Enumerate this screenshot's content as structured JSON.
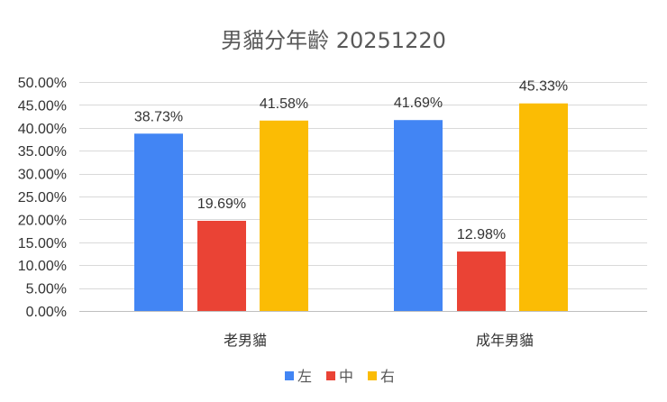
{
  "chart_data": {
    "type": "bar",
    "title": "男貓分年齡 20251220",
    "categories": [
      "老男貓",
      "成年男貓"
    ],
    "series": [
      {
        "name": "左",
        "color": "#4285f4",
        "values": [
          38.73,
          41.69
        ],
        "labels": [
          "38.73%",
          "41.69%"
        ]
      },
      {
        "name": "中",
        "color": "#ea4335",
        "values": [
          19.69,
          12.98
        ],
        "labels": [
          "19.69%",
          "12.98%"
        ]
      },
      {
        "name": "右",
        "color": "#fbbc04",
        "values": [
          41.58,
          45.33
        ],
        "labels": [
          "41.58%",
          "45.33%"
        ]
      }
    ],
    "ylim": [
      0,
      50
    ],
    "yticks": [
      0,
      5,
      10,
      15,
      20,
      25,
      30,
      35,
      40,
      45,
      50
    ],
    "ytick_labels": [
      "0.00%",
      "5.00%",
      "10.00%",
      "15.00%",
      "20.00%",
      "25.00%",
      "30.00%",
      "35.00%",
      "40.00%",
      "45.00%",
      "50.00%"
    ],
    "grid": true,
    "legend_position": "bottom"
  }
}
